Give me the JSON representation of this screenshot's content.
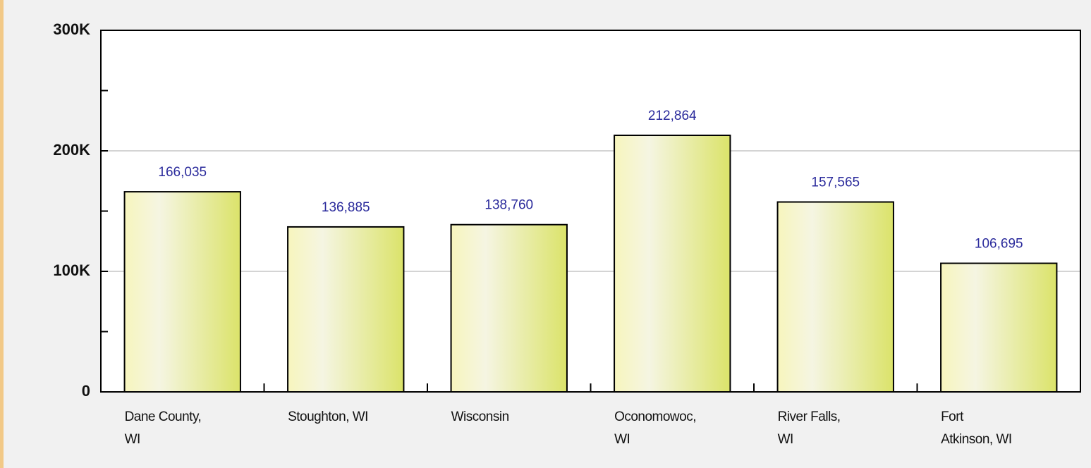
{
  "chart_data": {
    "type": "bar",
    "categories": [
      "Dane County,\nWI",
      "Stoughton, WI",
      "Wisconsin",
      "Oconomowoc,\nWI",
      "River Falls,\nWI",
      "Fort\nAtkinson, WI"
    ],
    "values": [
      166035,
      136885,
      138760,
      212864,
      157565,
      106695
    ],
    "value_labels": [
      "166,035",
      "136,885",
      "138,760",
      "212,864",
      "157,565",
      "106,695"
    ],
    "ylim": [
      0,
      300000
    ],
    "yticks": [
      0,
      {
        "value": 100000,
        "label": "100K"
      },
      {
        "value": 200000,
        "label": "200K"
      },
      {
        "value": 300000,
        "label": "300K"
      }
    ],
    "yminorticks": [
      50000,
      150000,
      250000
    ],
    "grid": true,
    "colors": [
      "#f7f5bd",
      "#f5f5e2",
      "#dbe36a"
    ]
  }
}
